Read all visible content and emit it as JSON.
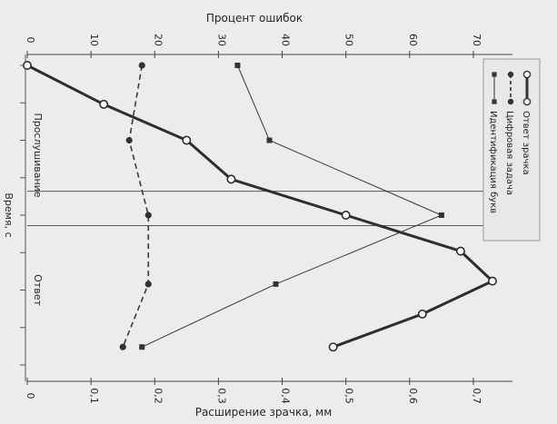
{
  "chart_data": {
    "type": "line",
    "orientation": "rotated-90-cw",
    "title": "",
    "top_axis": {
      "label": "Процент ошибок",
      "range": [
        0,
        75
      ],
      "ticks": [
        0,
        10,
        20,
        30,
        40,
        50,
        60,
        70
      ]
    },
    "bottom_axis": {
      "label": "Расширение зрачка, мм",
      "range": [
        0,
        0.75
      ],
      "ticks": [
        "0",
        "0,1",
        "0,2",
        "0,3",
        "0,4",
        "0,5",
        "0,6",
        "0,7"
      ],
      "tick_values": [
        0,
        0.1,
        0.2,
        0.3,
        0.4,
        0.5,
        0.6,
        0.7
      ]
    },
    "time_axis": {
      "label": "Время, с",
      "range": [
        0,
        10
      ],
      "phase_labels": [
        {
          "text": "Прослушивание",
          "at": 3
        },
        {
          "text": "Ответ",
          "at": 7.5
        }
      ],
      "phase_dividers": [
        4.2,
        5.35
      ]
    },
    "legend": {
      "placement": "top-right",
      "entries": [
        "Ответ зрачка",
        "Цифровая задача",
        "Идентификация букв"
      ]
    },
    "series": [
      {
        "name": "Ответ зрачка",
        "axis": "bottom",
        "style": "thick-line-open-circle",
        "t": [
          0,
          1.3,
          2.5,
          3.8,
          5.0,
          6.2,
          7.2,
          8.3,
          9.4
        ],
        "values": [
          0,
          0.12,
          0.25,
          0.32,
          0.5,
          0.68,
          0.73,
          0.62,
          0.48
        ]
      },
      {
        "name": "Цифровая задача",
        "axis": "top",
        "style": "dashed-line-filled-circle",
        "t": [
          0,
          2.5,
          5.0,
          7.3,
          9.4
        ],
        "values": [
          18,
          16,
          19,
          19,
          15
        ]
      },
      {
        "name": "Идентификация букв",
        "axis": "top",
        "style": "thin-line-filled-square",
        "t": [
          0,
          2.5,
          5.0,
          7.3,
          9.4
        ],
        "values": [
          33,
          38,
          65,
          39,
          18
        ]
      }
    ]
  }
}
